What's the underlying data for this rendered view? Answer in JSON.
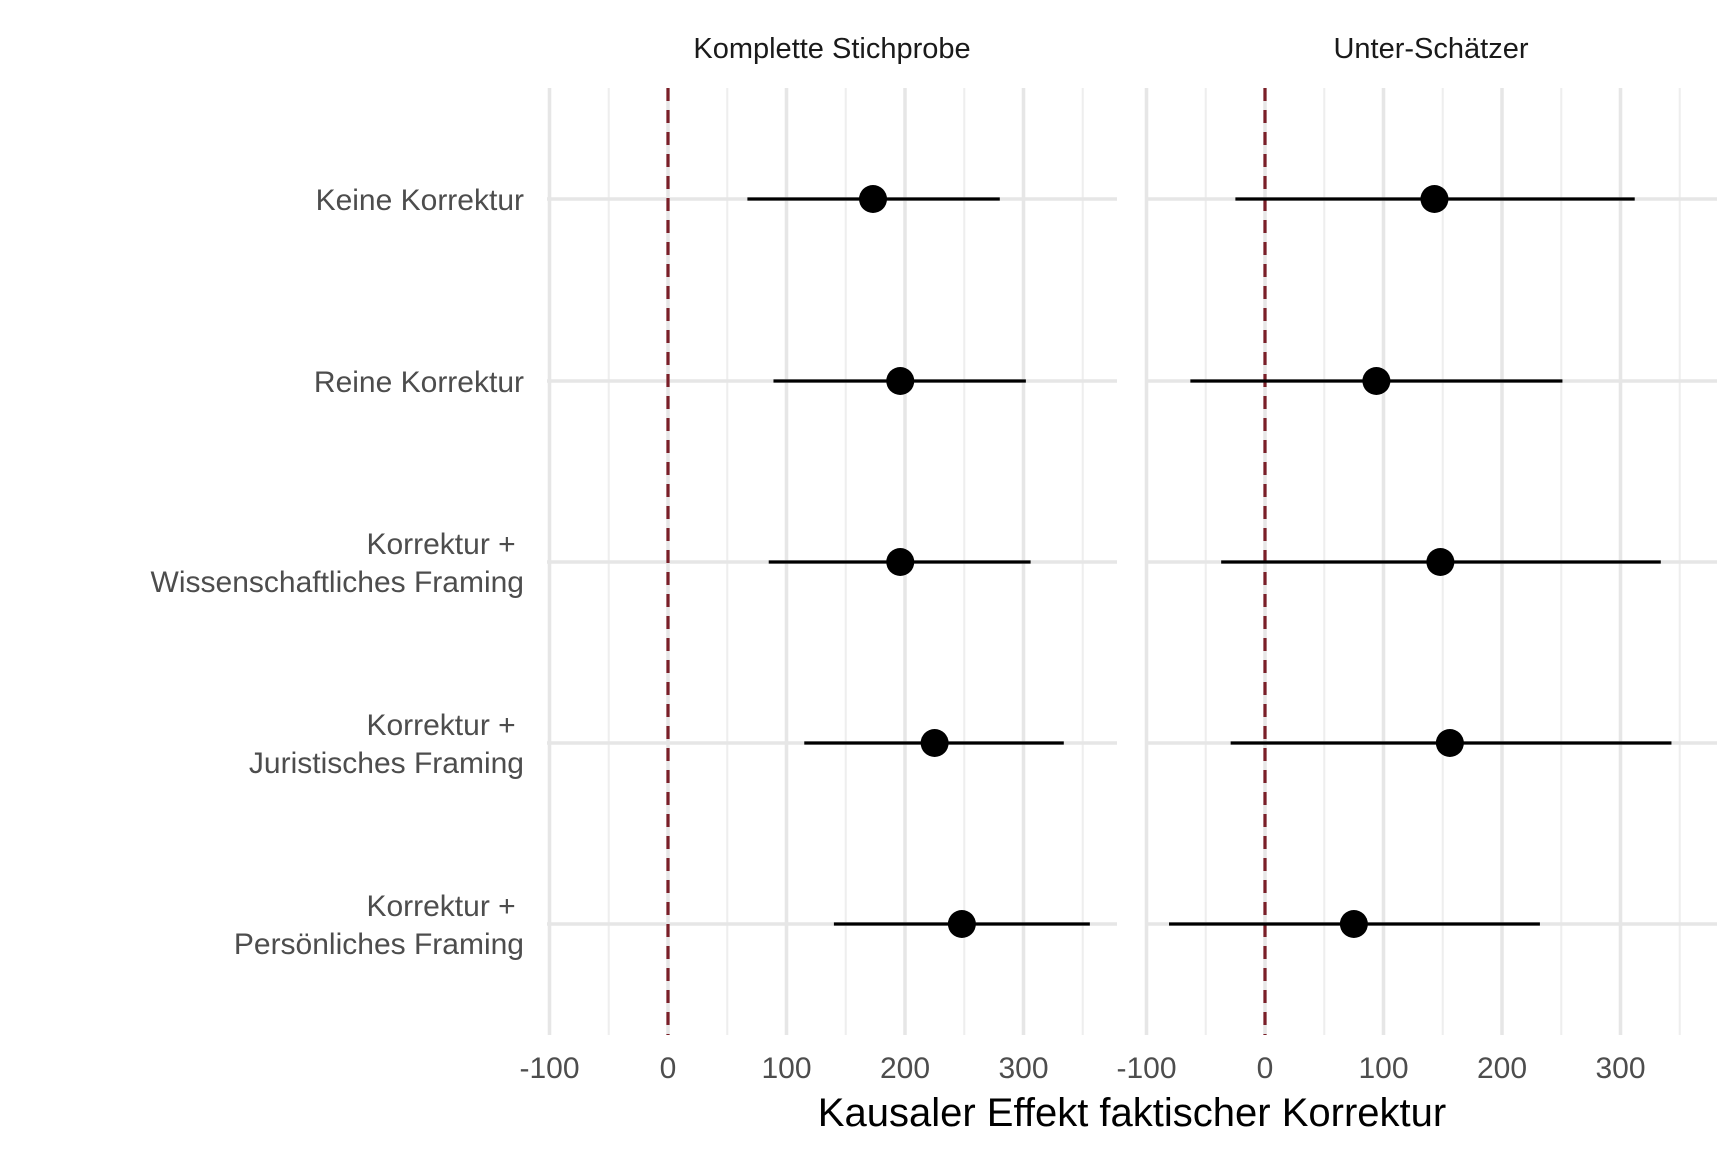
{
  "chart_data": {
    "type": "forest",
    "categories": [
      "Keine Korrektur",
      "Reine Korrektur",
      "Korrektur + \nWissenschaftliches Framing",
      "Korrektur + \nJuristisches Framing",
      "Korrektur + \nPersönliches Framing"
    ],
    "xlabel": "Kausaler Effekt faktischer Korrektur",
    "xlim": [
      -100,
      360
    ],
    "xticks": [
      -100,
      0,
      100,
      200,
      300
    ],
    "xtick_labels": [
      "-100",
      "0",
      "100",
      "200",
      "300"
    ],
    "reference_line": {
      "x": 0,
      "color": "#7a1f28",
      "style": "dashed"
    },
    "grid": true,
    "panels": [
      {
        "title": "Komplette Stichprobe",
        "points": [
          {
            "category": "Keine Korrektur",
            "estimate": 173,
            "lower": 67,
            "upper": 280
          },
          {
            "category": "Reine Korrektur",
            "estimate": 196,
            "lower": 89,
            "upper": 302
          },
          {
            "category": "Korrektur + \nWissenschaftliches Framing",
            "estimate": 196,
            "lower": 85,
            "upper": 306
          },
          {
            "category": "Korrektur + \nJuristisches Framing",
            "estimate": 225,
            "lower": 115,
            "upper": 334
          },
          {
            "category": "Korrektur + \nPersönliches Framing",
            "estimate": 248,
            "lower": 140,
            "upper": 356
          }
        ]
      },
      {
        "title": "Unter-Schätzer",
        "points": [
          {
            "category": "Keine Korrektur",
            "estimate": 143,
            "lower": -25,
            "upper": 312
          },
          {
            "category": "Reine Korrektur",
            "estimate": 94,
            "lower": -63,
            "upper": 251
          },
          {
            "category": "Korrektur + \nWissenschaftliches Framing",
            "estimate": 148,
            "lower": -37,
            "upper": 334
          },
          {
            "category": "Korrektur + \nJuristisches Framing",
            "estimate": 156,
            "lower": -29,
            "upper": 343
          },
          {
            "category": "Korrektur + \nPersönliches Framing",
            "estimate": 75,
            "lower": -81,
            "upper": 232
          }
        ]
      }
    ]
  }
}
